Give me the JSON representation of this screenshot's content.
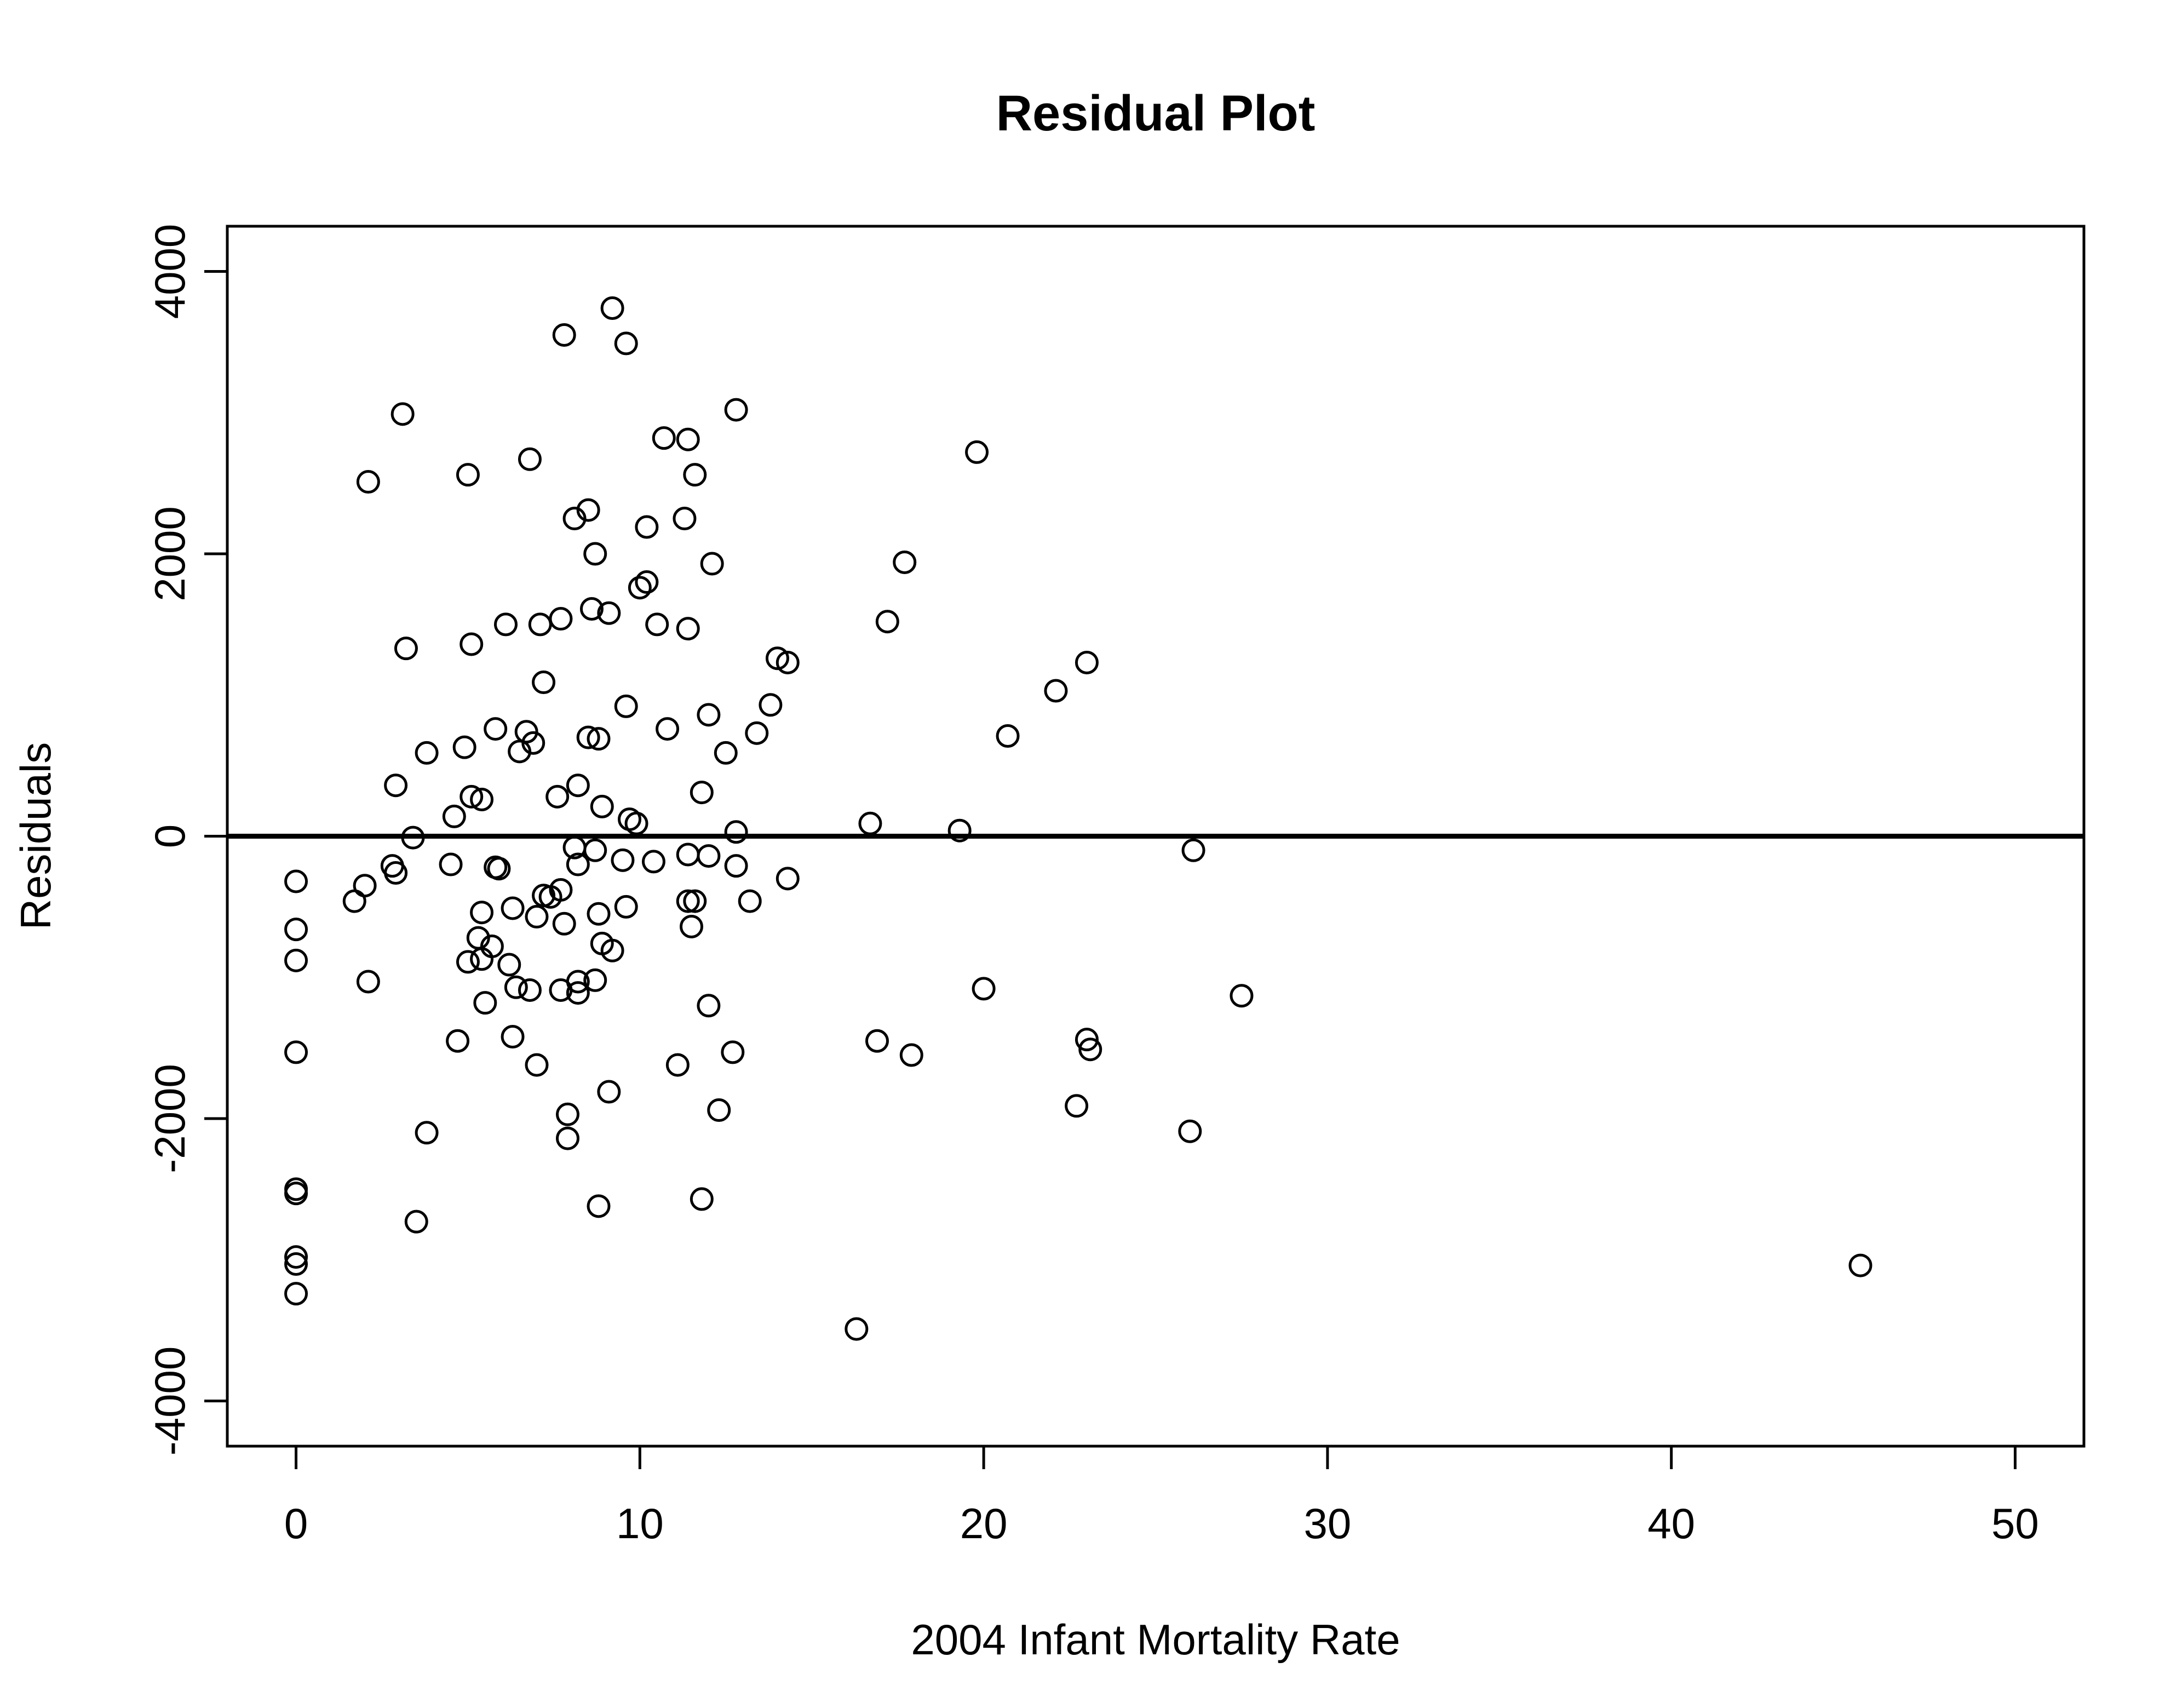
{
  "chart_data": {
    "type": "scatter",
    "title": "Residual Plot",
    "xlabel": "2004 Infant Mortality Rate",
    "ylabel": "Residuals",
    "xlim": [
      -2,
      52
    ],
    "ylim": [
      -4320,
      4320
    ],
    "xticks": [
      0,
      10,
      20,
      30,
      40,
      50
    ],
    "yticks": [
      -4000,
      -2000,
      0,
      2000,
      4000
    ],
    "reference_line": 0,
    "grid": false,
    "series": [
      {
        "marker": "open-circle",
        "points": [
          [
            0,
            -320
          ],
          [
            0,
            -660
          ],
          [
            0,
            -880
          ],
          [
            0,
            -1530
          ],
          [
            0,
            -2500
          ],
          [
            0,
            -2530
          ],
          [
            0,
            -2980
          ],
          [
            0,
            -3030
          ],
          [
            0,
            -3240
          ],
          [
            1.7,
            -460
          ],
          [
            2.0,
            -350
          ],
          [
            2.1,
            2510
          ],
          [
            2.1,
            -1030
          ],
          [
            2.8,
            -210
          ],
          [
            2.9,
            -260
          ],
          [
            2.9,
            360
          ],
          [
            3.1,
            2990
          ],
          [
            3.2,
            1330
          ],
          [
            3.4,
            -10
          ],
          [
            3.5,
            -2730
          ],
          [
            3.8,
            590
          ],
          [
            3.8,
            -2100
          ],
          [
            4.5,
            -200
          ],
          [
            4.6,
            140
          ],
          [
            4.7,
            -1450
          ],
          [
            4.9,
            630
          ],
          [
            5.0,
            2560
          ],
          [
            5.0,
            -890
          ],
          [
            5.1,
            1360
          ],
          [
            5.1,
            280
          ],
          [
            5.3,
            -720
          ],
          [
            5.4,
            260
          ],
          [
            5.4,
            -540
          ],
          [
            5.4,
            -870
          ],
          [
            5.5,
            -1180
          ],
          [
            5.7,
            -780
          ],
          [
            5.8,
            760
          ],
          [
            5.8,
            -220
          ],
          [
            5.9,
            -230
          ],
          [
            6.1,
            1500
          ],
          [
            6.2,
            -910
          ],
          [
            6.3,
            -510
          ],
          [
            6.3,
            -1420
          ],
          [
            6.4,
            -1070
          ],
          [
            6.5,
            600
          ],
          [
            6.7,
            740
          ],
          [
            6.8,
            2670
          ],
          [
            6.8,
            -1090
          ],
          [
            6.9,
            660
          ],
          [
            7.0,
            -570
          ],
          [
            7.0,
            -1620
          ],
          [
            7.1,
            1500
          ],
          [
            7.2,
            1090
          ],
          [
            7.2,
            -420
          ],
          [
            7.4,
            -430
          ],
          [
            7.6,
            280
          ],
          [
            7.7,
            -380
          ],
          [
            7.7,
            -1090
          ],
          [
            7.7,
            1540
          ],
          [
            7.8,
            3550
          ],
          [
            7.8,
            -620
          ],
          [
            7.9,
            -1970
          ],
          [
            7.9,
            -2140
          ],
          [
            8.1,
            2250
          ],
          [
            8.1,
            -80
          ],
          [
            8.2,
            360
          ],
          [
            8.2,
            -200
          ],
          [
            8.2,
            -1030
          ],
          [
            8.2,
            -1110
          ],
          [
            8.5,
            2310
          ],
          [
            8.5,
            700
          ],
          [
            8.6,
            1610
          ],
          [
            8.7,
            2000
          ],
          [
            8.7,
            -100
          ],
          [
            8.7,
            -1020
          ],
          [
            8.8,
            690
          ],
          [
            8.8,
            -550
          ],
          [
            8.8,
            -2620
          ],
          [
            8.9,
            210
          ],
          [
            8.9,
            -760
          ],
          [
            9.1,
            1580
          ],
          [
            9.1,
            -1810
          ],
          [
            9.2,
            3740
          ],
          [
            9.2,
            -810
          ],
          [
            9.5,
            -170
          ],
          [
            9.6,
            3490
          ],
          [
            9.6,
            920
          ],
          [
            9.6,
            -500
          ],
          [
            9.7,
            120
          ],
          [
            9.9,
            90
          ],
          [
            10.0,
            1760
          ],
          [
            10.2,
            2190
          ],
          [
            10.2,
            1800
          ],
          [
            10.4,
            -180
          ],
          [
            10.5,
            1500
          ],
          [
            10.7,
            2820
          ],
          [
            10.8,
            760
          ],
          [
            11.1,
            -1620
          ],
          [
            11.3,
            2250
          ],
          [
            11.4,
            2810
          ],
          [
            11.4,
            1470
          ],
          [
            11.4,
            -130
          ],
          [
            11.4,
            -460
          ],
          [
            11.5,
            -640
          ],
          [
            11.6,
            2560
          ],
          [
            11.6,
            -460
          ],
          [
            11.8,
            310
          ],
          [
            11.8,
            -2570
          ],
          [
            12.0,
            860
          ],
          [
            12.0,
            -140
          ],
          [
            12.0,
            -1200
          ],
          [
            12.1,
            1930
          ],
          [
            12.3,
            -1940
          ],
          [
            12.5,
            590
          ],
          [
            12.7,
            -1530
          ],
          [
            12.8,
            3020
          ],
          [
            12.8,
            30
          ],
          [
            12.8,
            -210
          ],
          [
            13.2,
            -460
          ],
          [
            13.4,
            730
          ],
          [
            13.8,
            930
          ],
          [
            14.0,
            1260
          ],
          [
            14.3,
            1230
          ],
          [
            14.3,
            -300
          ],
          [
            16.3,
            -3490
          ],
          [
            16.7,
            90
          ],
          [
            16.9,
            -1450
          ],
          [
            17.2,
            1520
          ],
          [
            17.7,
            1940
          ],
          [
            17.9,
            -1550
          ],
          [
            19.3,
            40
          ],
          [
            19.8,
            2720
          ],
          [
            20.0,
            -1080
          ],
          [
            20.7,
            710
          ],
          [
            22.1,
            1030
          ],
          [
            22.7,
            -1910
          ],
          [
            23.0,
            1230
          ],
          [
            23.0,
            -1440
          ],
          [
            23.1,
            -1510
          ],
          [
            26.0,
            -2090
          ],
          [
            26.1,
            -100
          ],
          [
            27.5,
            -1130
          ],
          [
            45.5,
            -3040
          ]
        ]
      }
    ]
  }
}
